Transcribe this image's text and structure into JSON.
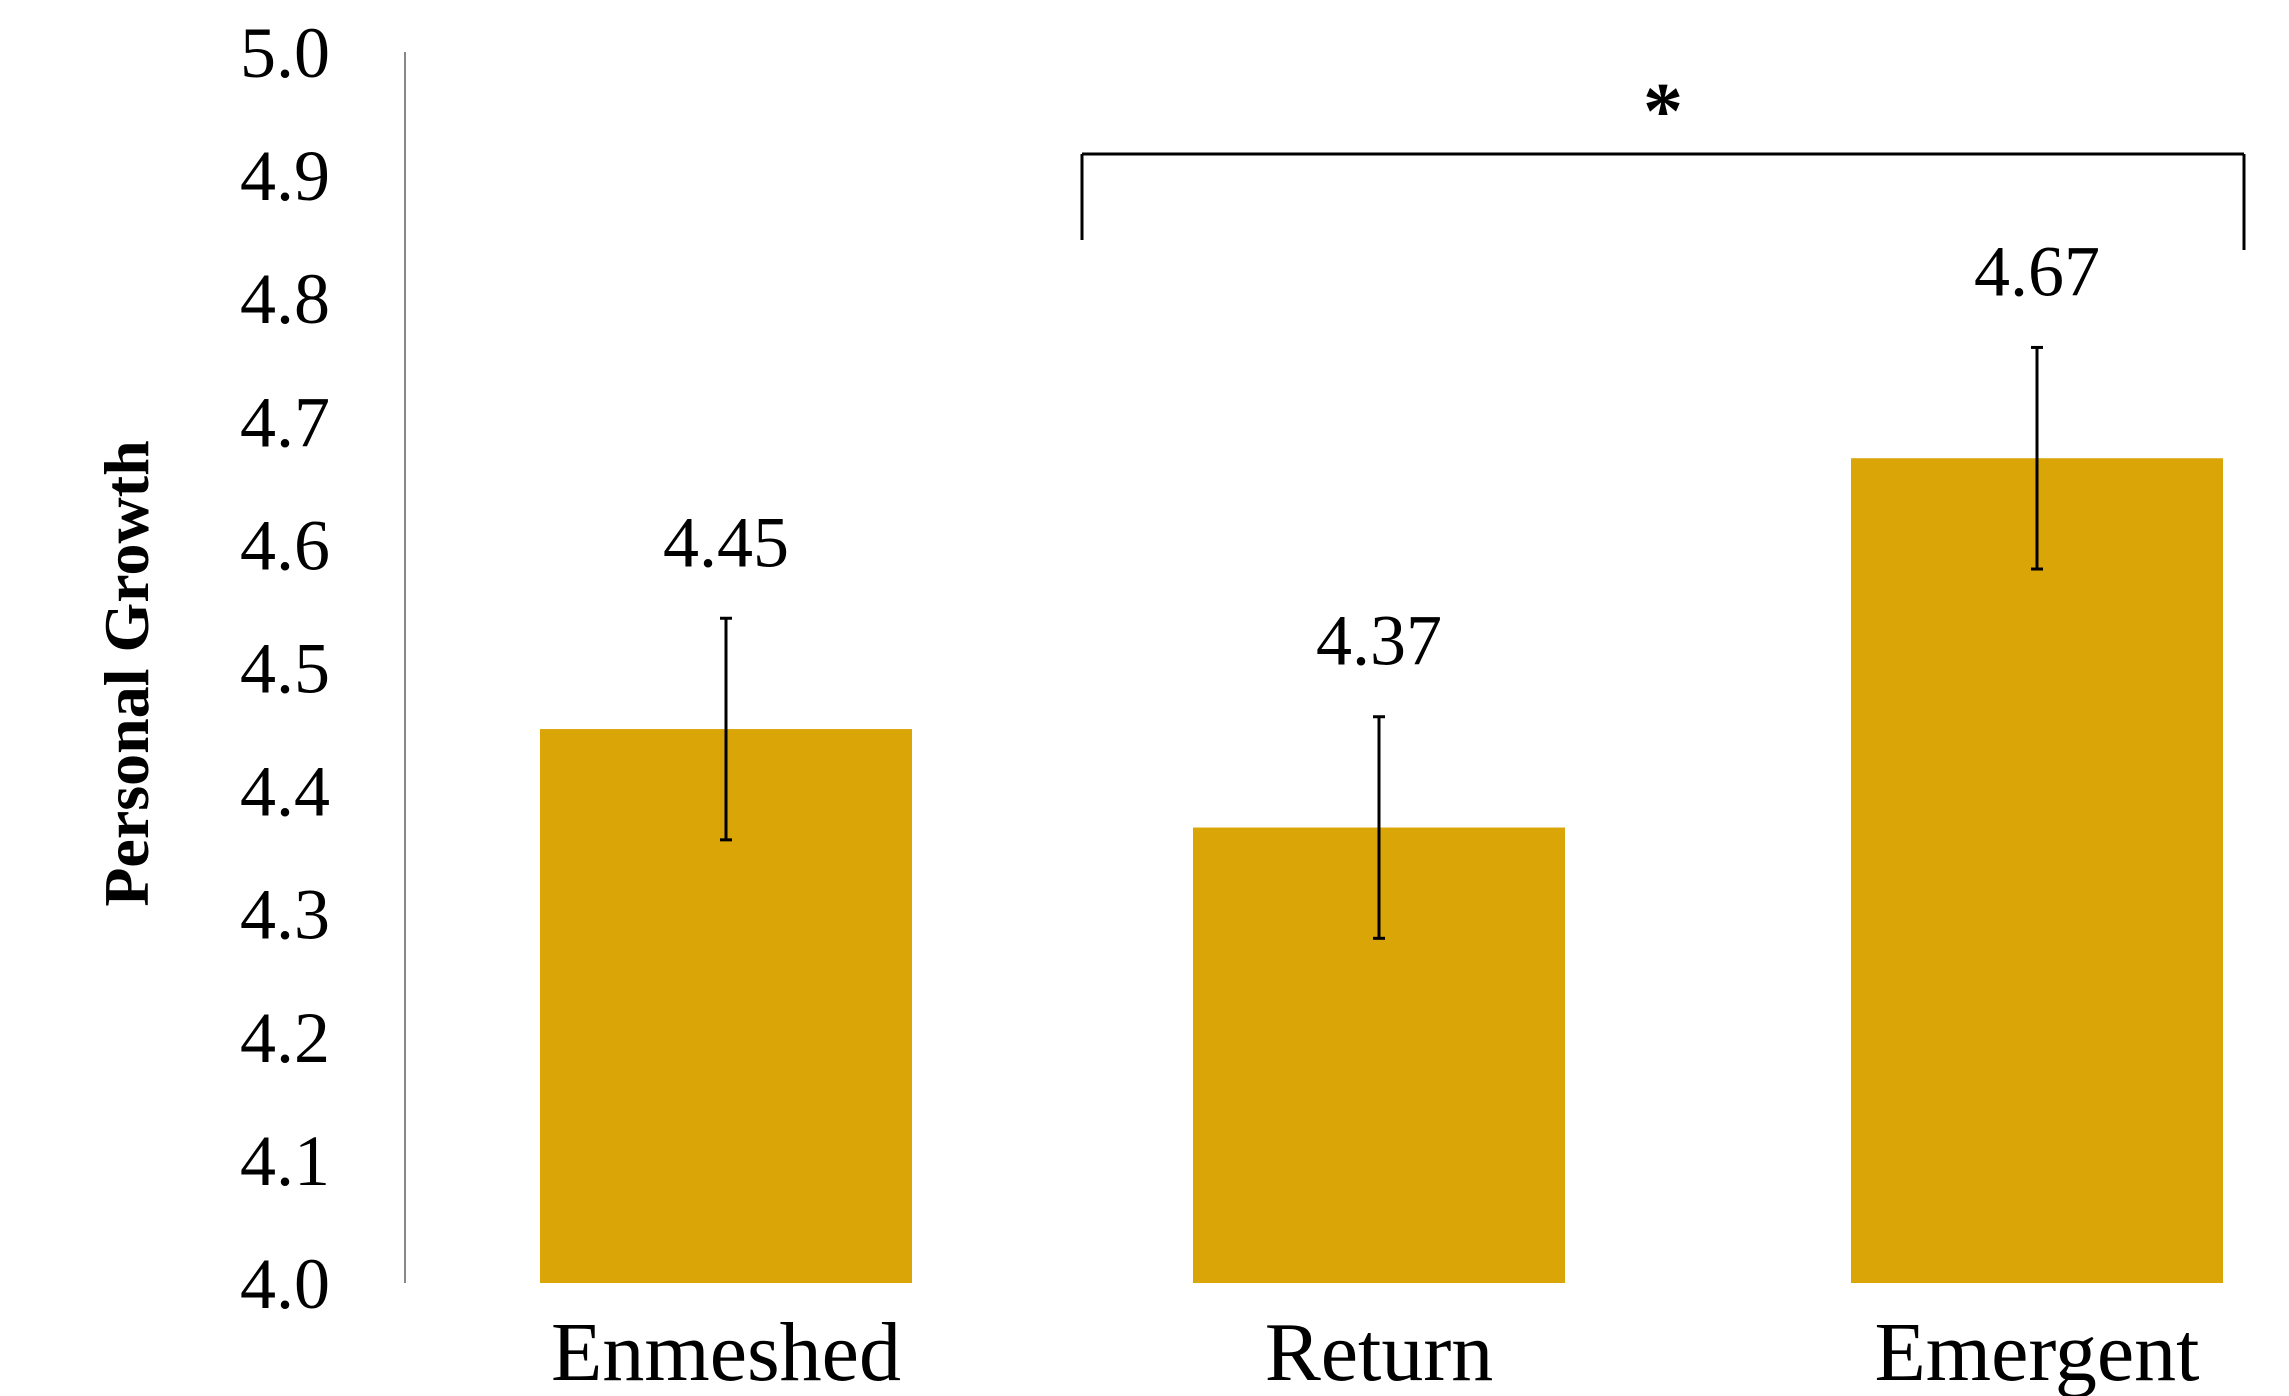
{
  "chart_data": {
    "type": "bar",
    "title": "",
    "xlabel": "",
    "ylabel": "Personal Growth",
    "categories": [
      "Enmeshed",
      "Return",
      "Emergent"
    ],
    "series": [
      {
        "values": [
          4.45,
          4.37,
          4.67
        ],
        "error": [
          0.09,
          0.09,
          0.09
        ],
        "color": "#DAA506"
      }
    ],
    "value_labels": [
      "4.45",
      "4.37",
      "4.67"
    ],
    "ylim": [
      4.0,
      5.0
    ],
    "yticks": [
      "4.0",
      "4.1",
      "4.2",
      "4.3",
      "4.4",
      "4.5",
      "4.6",
      "4.7",
      "4.8",
      "4.9",
      "5.0"
    ],
    "grid": false,
    "legend": "none",
    "significance": {
      "from": "Return",
      "to": "Emergent",
      "label": "*"
    }
  }
}
